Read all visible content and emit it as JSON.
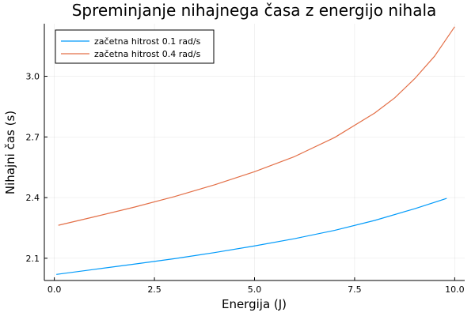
{
  "chart_data": {
    "type": "line",
    "title": "Spreminjanje nihajnega časa z energijo nihala",
    "xlabel": "Energija (J)",
    "ylabel": "Nihajni čas (s)",
    "xlim": [
      -0.25,
      10.25
    ],
    "ylim": [
      1.99,
      3.26
    ],
    "xticks": [
      0.0,
      2.5,
      5.0,
      7.5,
      10.0
    ],
    "xtick_labels": [
      "0.0",
      "2.5",
      "5.0",
      "7.5",
      "10.0"
    ],
    "yticks": [
      2.1,
      2.4,
      2.7,
      3.0
    ],
    "ytick_labels": [
      "2.1",
      "2.4",
      "2.7",
      "3.0"
    ],
    "grid": true,
    "legend_position": "top-left",
    "series": [
      {
        "name": "začetna hitrost 0.1 rad/s",
        "color": "#009AFA",
        "x": [
          0.05,
          1.0,
          2.0,
          3.0,
          4.0,
          5.0,
          6.0,
          7.0,
          8.0,
          9.0,
          9.8
        ],
        "y": [
          2.02,
          2.045,
          2.071,
          2.098,
          2.128,
          2.161,
          2.197,
          2.238,
          2.287,
          2.345,
          2.396
        ]
      },
      {
        "name": "začetna hitrost 0.4 rad/s",
        "color": "#E36F47",
        "x": [
          0.1,
          1.0,
          2.0,
          3.0,
          4.0,
          5.0,
          6.0,
          7.0,
          8.0,
          8.5,
          9.0,
          9.5,
          10.0
        ],
        "y": [
          2.263,
          2.305,
          2.353,
          2.405,
          2.463,
          2.528,
          2.603,
          2.697,
          2.818,
          2.893,
          2.988,
          3.1,
          3.245
        ]
      }
    ]
  }
}
